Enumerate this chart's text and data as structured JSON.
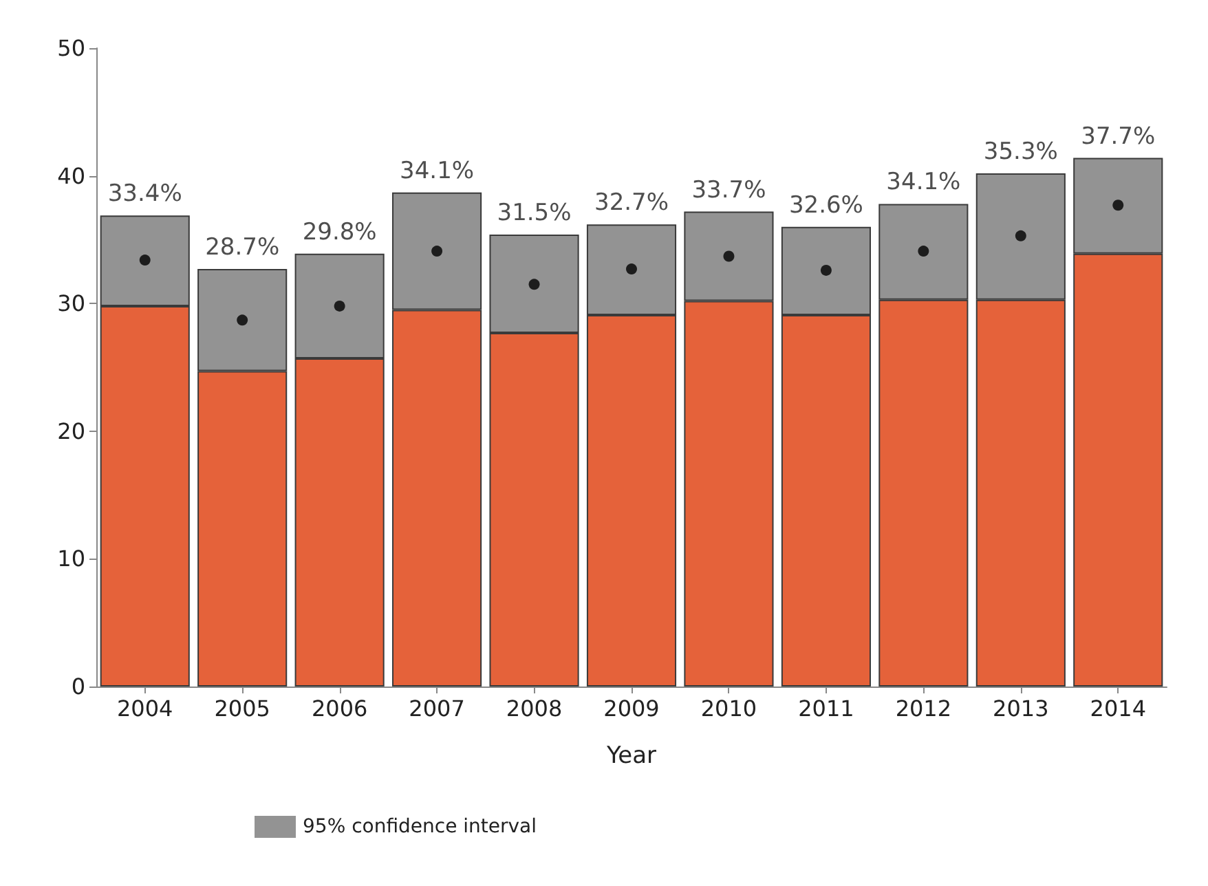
{
  "chart_data": {
    "type": "bar",
    "stacked": true,
    "xlabel": "Year",
    "categories": [
      "2004",
      "2005",
      "2006",
      "2007",
      "2008",
      "2009",
      "2010",
      "2011",
      "2012",
      "2013",
      "2014"
    ],
    "series": [
      {
        "color": "#e5623a",
        "values": [
          29.8,
          24.7,
          25.7,
          29.5,
          27.7,
          29.1,
          30.2,
          29.1,
          30.3,
          30.3,
          33.9
        ]
      },
      {
        "name": "95% confidence interval",
        "color": "#939393",
        "values": [
          7.1,
          8.0,
          8.2,
          9.2,
          7.7,
          7.1,
          7.0,
          6.9,
          7.5,
          9.9,
          7.5
        ]
      },
      {
        "type": "scatter",
        "color": "#000000",
        "values": [
          33.4,
          28.7,
          29.8,
          34.1,
          31.5,
          32.7,
          33.7,
          32.6,
          34.1,
          35.3,
          37.7
        ],
        "value_labels": [
          "33.4%",
          "28.7%",
          "29.8%",
          "34.1%",
          "31.5%",
          "32.7%",
          "33.7%",
          "32.6%",
          "34.1%",
          "35.3%",
          "37.7%"
        ]
      }
    ],
    "ylim": [
      0,
      50
    ],
    "yticks": [
      0,
      10,
      20,
      30,
      40,
      50
    ],
    "grid": false,
    "legend": "bottom left",
    "marker": "circle"
  }
}
